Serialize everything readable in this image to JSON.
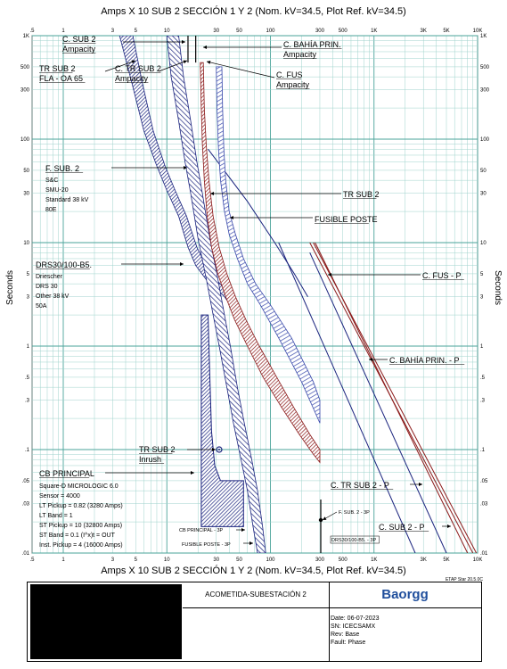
{
  "header": {
    "title_top": "Amps  X  10   SUB 2 SECCIÓN 1 Y 2 (Nom. kV=34.5, Plot Ref. kV=34.5)",
    "title_bottom": "Amps  X  10   SUB 2 SECCIÓN 1 Y 2 (Nom. kV=34.5, Plot Ref. kV=34.5)",
    "ylabel": "Seconds",
    "software": "ETAP Star 20.5.0C"
  },
  "chart_data": {
    "type": "line",
    "scale": "log-log",
    "xlim": [
      0.5,
      10000
    ],
    "ylim": [
      0.01,
      1000
    ],
    "xticks": [
      ".5",
      "1",
      "3",
      "5",
      "10",
      "30",
      "50",
      "100",
      "300",
      "500",
      "1K",
      "3K",
      "5K",
      "10K"
    ],
    "yticks": [
      "1K",
      "500",
      "300",
      "100",
      "50",
      "30",
      "10",
      "5",
      "3",
      "1",
      ".5",
      ".3",
      ".1",
      ".05",
      ".03",
      ".01"
    ],
    "grid": true,
    "series": [
      {
        "name": "F. SUB. 2",
        "color": "#1a237e",
        "style": "band-hatched",
        "upper": [
          [
            3.5,
            1000
          ],
          [
            4.6,
            350
          ],
          [
            6,
            120
          ],
          [
            8,
            55
          ],
          [
            10,
            32
          ],
          [
            13,
            18
          ],
          [
            16,
            9
          ],
          [
            19,
            6
          ],
          [
            24,
            4.4
          ],
          [
            30,
            3.6
          ],
          [
            36,
            3
          ],
          [
            40,
            2.6
          ]
        ],
        "lower": [
          [
            4.7,
            1000
          ],
          [
            5.8,
            350
          ],
          [
            7.4,
            120
          ],
          [
            9.6,
            55
          ],
          [
            12,
            32
          ],
          [
            15.5,
            18
          ],
          [
            19.5,
            9
          ],
          [
            24,
            6
          ],
          [
            30,
            4.4
          ],
          [
            36,
            3.6
          ],
          [
            40,
            3
          ]
        ]
      },
      {
        "name": "C. TR SUB 2",
        "color": "#1a237e",
        "style": "band-hatched-wide",
        "upper": [
          [
            10,
            1000
          ],
          [
            11,
            400
          ],
          [
            13,
            150
          ],
          [
            15,
            60
          ],
          [
            17,
            30
          ],
          [
            20,
            11
          ],
          [
            24,
            4.5
          ],
          [
            28,
            2
          ],
          [
            32,
            1
          ],
          [
            38,
            0.4
          ],
          [
            44,
            0.18
          ],
          [
            52,
            0.08
          ],
          [
            60,
            0.04
          ],
          [
            68,
            0.018
          ],
          [
            75,
            0.01
          ]
        ],
        "lower": [
          [
            13,
            1000
          ],
          [
            14.5,
            400
          ],
          [
            17,
            150
          ],
          [
            19.5,
            60
          ],
          [
            22,
            30
          ],
          [
            26,
            11
          ],
          [
            31,
            4.5
          ],
          [
            36,
            2
          ],
          [
            41,
            1
          ],
          [
            48,
            0.4
          ],
          [
            56,
            0.18
          ],
          [
            66,
            0.08
          ],
          [
            75,
            0.04
          ],
          [
            84,
            0.018
          ],
          [
            90,
            0.01
          ]
        ]
      },
      {
        "name": "FUSIBLE POSTE",
        "color": "#8b1a1a",
        "style": "band-hatched",
        "upper": [
          [
            21,
            550
          ],
          [
            21.5,
            200
          ],
          [
            22,
            90
          ],
          [
            23,
            40
          ],
          [
            24.5,
            18
          ],
          [
            27,
            9
          ],
          [
            31,
            5
          ],
          [
            37,
            3
          ],
          [
            45,
            1.8
          ],
          [
            60,
            1
          ],
          [
            85,
            0.5
          ],
          [
            130,
            0.25
          ],
          [
            190,
            0.14
          ],
          [
            260,
            0.09
          ],
          [
            300,
            0.075
          ]
        ],
        "lower": [
          [
            22.5,
            550
          ],
          [
            23,
            200
          ],
          [
            24,
            90
          ],
          [
            25.5,
            40
          ],
          [
            28,
            18
          ],
          [
            32,
            9
          ],
          [
            38,
            5
          ],
          [
            46,
            3
          ],
          [
            58,
            1.8
          ],
          [
            78,
            1
          ],
          [
            115,
            0.5
          ],
          [
            170,
            0.25
          ],
          [
            240,
            0.14
          ],
          [
            300,
            0.1
          ]
        ]
      },
      {
        "name": "TR SUB 2",
        "color": "#1a237e",
        "style": "line",
        "points": [
          [
            25,
            80
          ],
          [
            60,
            25
          ],
          [
            110,
            10
          ],
          [
            170,
            5
          ],
          [
            230,
            3
          ]
        ]
      },
      {
        "name": "C. FUS",
        "color": "#3949ab",
        "style": "band",
        "upper": [
          [
            30,
            500
          ],
          [
            30.5,
            200
          ],
          [
            31.5,
            80
          ],
          [
            33,
            40
          ],
          [
            36,
            20
          ],
          [
            40,
            12
          ],
          [
            48,
            7
          ],
          [
            60,
            4
          ],
          [
            80,
            2.5
          ],
          [
            120,
            1.2
          ],
          [
            200,
            0.45
          ],
          [
            300,
            0.18
          ]
        ],
        "lower": [
          [
            34,
            500
          ],
          [
            34.5,
            200
          ],
          [
            35.5,
            80
          ],
          [
            37,
            40
          ],
          [
            40,
            20
          ],
          [
            46,
            12
          ],
          [
            55,
            7
          ],
          [
            72,
            4
          ],
          [
            100,
            2.5
          ],
          [
            160,
            1.2
          ],
          [
            260,
            0.45
          ],
          [
            300,
            0.3
          ]
        ]
      },
      {
        "name": "CB PRINCIPAL",
        "color": "#1a237e",
        "style": "region",
        "points": [
          [
            21.5,
            2
          ],
          [
            21.5,
            0.018
          ],
          [
            55,
            0.018
          ],
          [
            55,
            0.05
          ],
          [
            33,
            0.05
          ],
          [
            29,
            0.07
          ],
          [
            27,
            0.15
          ],
          [
            26,
            0.5
          ],
          [
            25,
            2
          ]
        ]
      },
      {
        "name": "C. FUS - P",
        "color": "#8b1a1a",
        "style": "double-line",
        "points": [
          [
            240,
            10
          ],
          [
            9000,
            0.01
          ]
        ]
      },
      {
        "name": "C. BAHÍA PRIN. - P",
        "color": "#8b1a1a",
        "style": "line",
        "points": [
          [
            270,
            10
          ],
          [
            8000,
            0.01
          ]
        ]
      },
      {
        "name": "C. TR SUB 2 - P",
        "color": "#1a237e",
        "style": "line",
        "points": [
          [
            120,
            10
          ],
          [
            2500,
            0.01
          ]
        ]
      },
      {
        "name": "C. SUB 2 - P",
        "color": "#1a237e",
        "style": "line",
        "points": [
          [
            240,
            8
          ],
          [
            5000,
            0.01
          ]
        ]
      }
    ],
    "ampacity_marks": [
      {
        "name": "C. SUB 2 Ampacity",
        "x": 16
      },
      {
        "name": "C. BAHÍA PRIN. Ampacity",
        "x": 19
      }
    ]
  },
  "annotations": [
    {
      "id": "c-sub2-ampacity",
      "lines": [
        "C. SUB 2",
        "Ampacity"
      ],
      "underline": true
    },
    {
      "id": "c-bahia-ampacity",
      "lines": [
        "C. BAHÍA PRIN.",
        "Ampacity"
      ],
      "underline": true
    },
    {
      "id": "tr-sub2-fla",
      "lines": [
        "TR SUB 2",
        "FLA - OA 65"
      ],
      "underline": true
    },
    {
      "id": "c-tr-sub2-ampacity",
      "lines": [
        "C. TR SUB 2",
        "Ampacity"
      ],
      "underline": true
    },
    {
      "id": "c-fus-ampacity",
      "lines": [
        "C. FUS",
        "Ampacity"
      ],
      "underline": true
    },
    {
      "id": "f-sub2",
      "lines": [
        "F. SUB. 2"
      ],
      "underline": true
    },
    {
      "id": "f-sub2-desc",
      "lines": [
        "S&C",
        "SMU-20",
        "Standard  38 kV",
        "80E"
      ],
      "underline": false
    },
    {
      "id": "tr-sub2",
      "lines": [
        "TR SUB 2"
      ],
      "underline": true
    },
    {
      "id": "fusible-poste",
      "lines": [
        "FUSIBLE POSTE"
      ],
      "underline": true
    },
    {
      "id": "drs30",
      "lines": [
        "DRS30/100-B5."
      ],
      "underline": true
    },
    {
      "id": "drs30-desc",
      "lines": [
        "Driescher",
        "DRS 30",
        "Other  38 kV",
        "50A"
      ],
      "underline": false
    },
    {
      "id": "c-fus-p",
      "lines": [
        "C. FUS - P"
      ],
      "underline": true
    },
    {
      "id": "c-bahia-p",
      "lines": [
        "C. BAHÍA PRIN. - P"
      ],
      "underline": true
    },
    {
      "id": "tr-sub2-inrush",
      "lines": [
        "TR SUB 2",
        "Inrush"
      ],
      "underline": true
    },
    {
      "id": "cb-principal",
      "lines": [
        "CB PRINCIPAL"
      ],
      "underline": true
    },
    {
      "id": "cb-principal-desc",
      "lines": [
        "Square-D  MICROLOGIC 6.0",
        "Sensor = 4000",
        "LT Pickup = 0.82 (3280 Amps)",
        "LT Band = 1",
        "ST Pickup = 10 (32800 Amps)",
        "ST Band = 0.1  (I^x)t = OUT",
        "Inst. Pickup = 4 (16000 Amps)"
      ],
      "underline": false
    },
    {
      "id": "c-tr-sub2-p",
      "lines": [
        "C. TR SUB 2 - P"
      ],
      "underline": true
    },
    {
      "id": "f-sub2-3p",
      "lines": [
        "F. SUB. 2 - 3P"
      ],
      "underline": false
    },
    {
      "id": "c-sub2-p",
      "lines": [
        "C. SUB 2 - P"
      ],
      "underline": true
    },
    {
      "id": "cb-principal-3p",
      "lines": [
        "CB PRINCIPAL - 3P"
      ],
      "underline": false
    },
    {
      "id": "fusible-poste-3p",
      "lines": [
        "FUSIBLE POSTE - 3P"
      ],
      "underline": false
    },
    {
      "id": "drs30-3p",
      "lines": [
        "DRS30/100-B5. - 3P"
      ],
      "underline": false
    }
  ],
  "titleblock": {
    "project": "ACOMETIDA-SUBESTACIÓN 2",
    "logo": "Baorgg",
    "date": "Date:  06-07-2023",
    "sn": "SN:     ICECSAMX",
    "rev": "Rev:   Base",
    "fault": "Fault:  Phase"
  }
}
